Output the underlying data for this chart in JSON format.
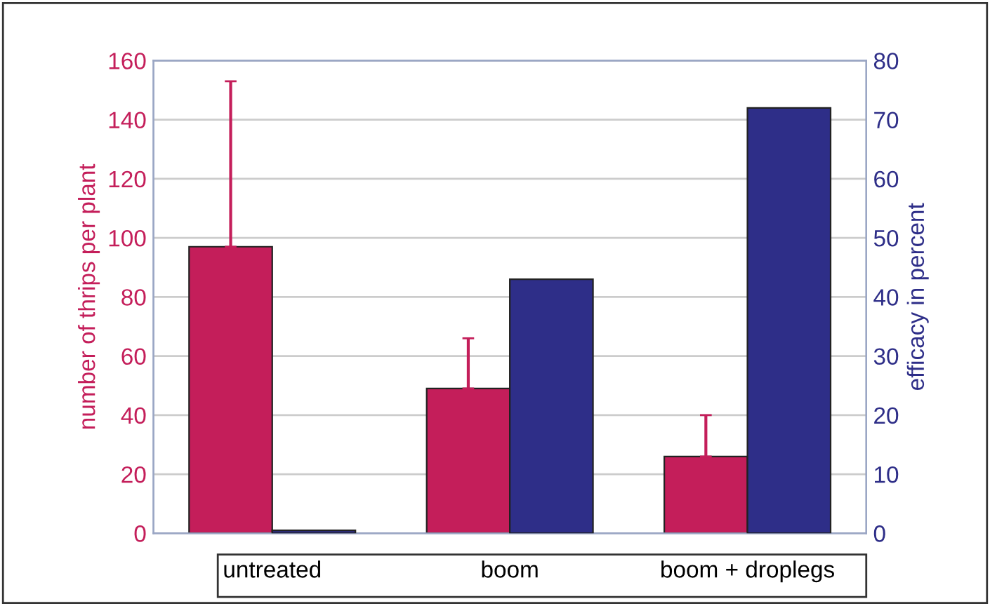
{
  "chart_data": {
    "type": "bar",
    "categories": [
      "untreated",
      "boom",
      "boom + droplegs"
    ],
    "ylabel": "number of thrips per plant",
    "y2label": "efficacy in percent",
    "series": [
      {
        "color": "#c41e5a",
        "values": [
          97,
          49,
          26
        ],
        "errors": [
          [
            97,
            153
          ],
          [
            49,
            66
          ],
          [
            26,
            40
          ]
        ]
      },
      {
        "color": "#2e2e88",
        "values": [
          0.5,
          43,
          72
        ],
        "axis": "y2"
      }
    ],
    "ylim": [
      0,
      160
    ],
    "yticks": [
      0,
      20,
      40,
      60,
      80,
      100,
      120,
      140,
      160
    ],
    "y2lim": [
      0,
      80
    ],
    "y2ticks": [
      0,
      10,
      20,
      30,
      40,
      50,
      60,
      70,
      80
    ],
    "grid": "y",
    "legend": false
  }
}
